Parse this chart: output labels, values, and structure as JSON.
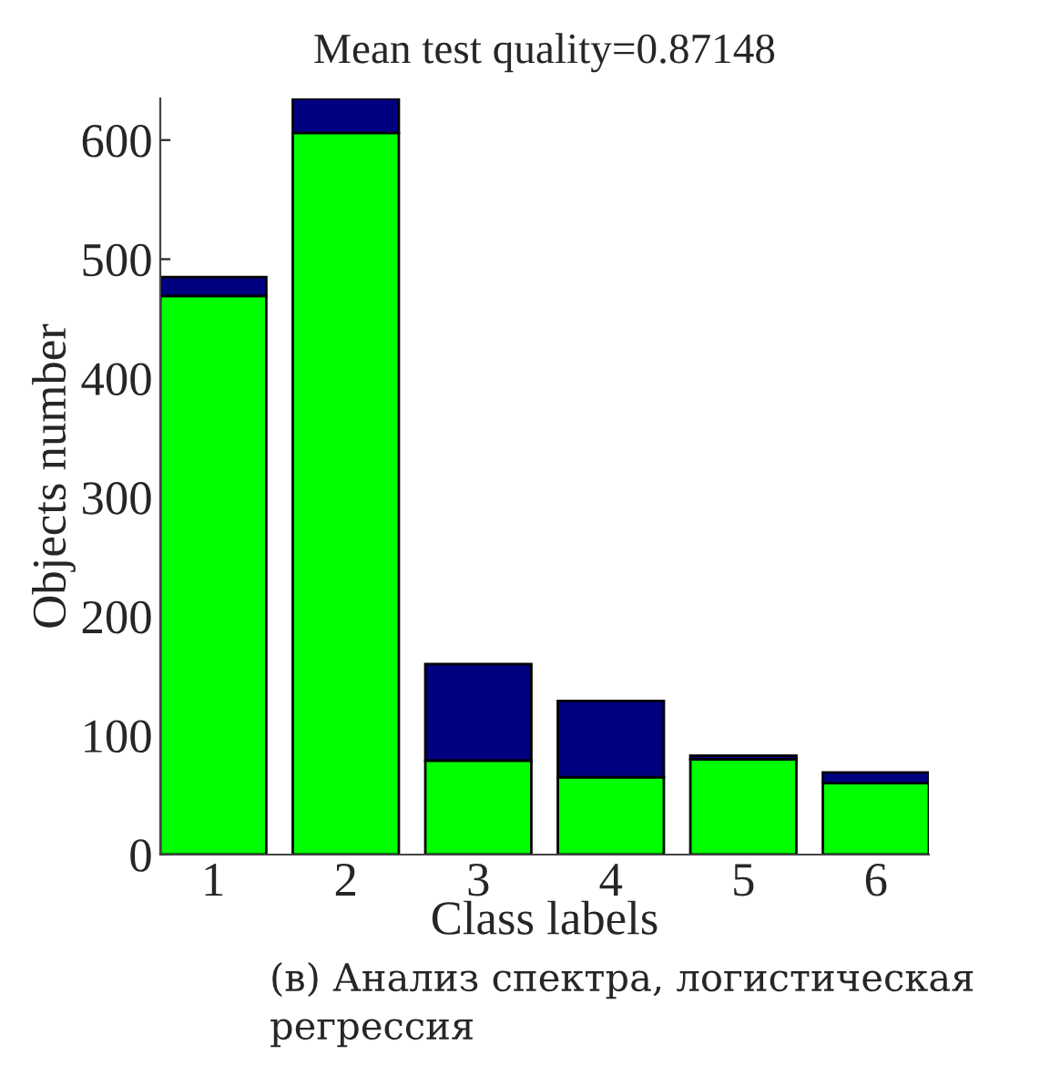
{
  "chart_data": {
    "type": "bar",
    "title": "Mean test quality=0.87148",
    "xlabel": "Class labels",
    "ylabel": "Objects number",
    "categories": [
      "1",
      "2",
      "3",
      "4",
      "5",
      "6"
    ],
    "stacked": true,
    "series": [
      {
        "color": "#00ff00",
        "values": [
          469,
          606,
          79,
          65,
          80,
          60
        ]
      },
      {
        "color": "#000080",
        "values": [
          16,
          29,
          81,
          64,
          3,
          9
        ]
      }
    ],
    "ylim": [
      0,
      635
    ],
    "yticks": [
      0,
      100,
      200,
      300,
      400,
      500,
      600
    ],
    "grid": false,
    "legend": false,
    "annotations": [
      "(в) Анализ спектра, логистическая регрессия"
    ]
  }
}
